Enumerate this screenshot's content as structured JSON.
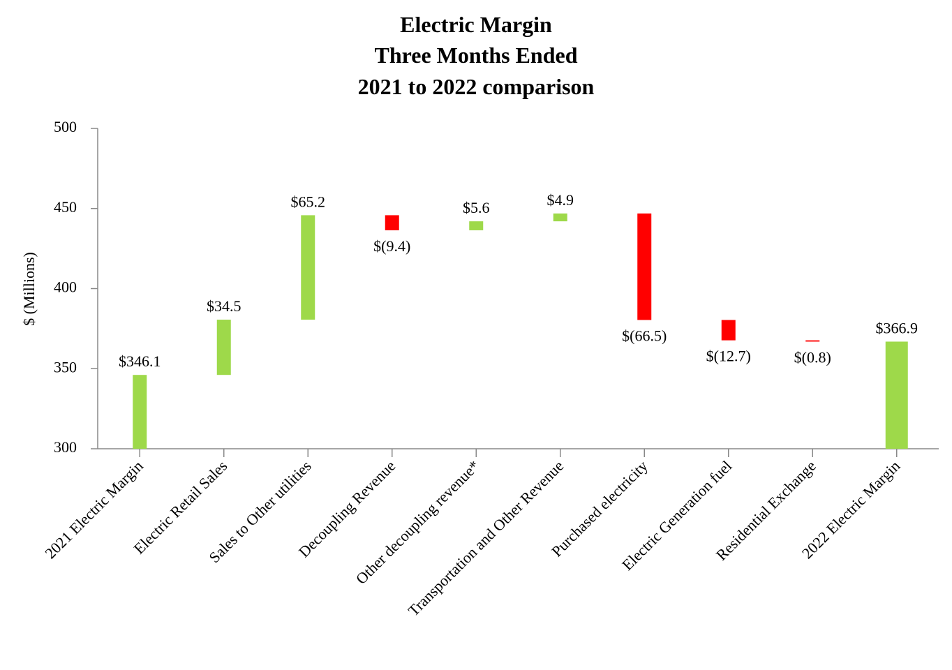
{
  "chart_data": {
    "type": "waterfall",
    "title": [
      "Electric Margin",
      "Three Months Ended",
      "2021 to 2022 comparison"
    ],
    "y_label": "$ (Millions)",
    "categories": [
      "2021 Electric Margin",
      "Electric Retail Sales",
      "Sales to Other utilities",
      "Decoupling Revenue",
      "Other decoupling revenue*",
      "Transportation and Other Revenue",
      "Purchased electricity",
      "Electric Generation fuel",
      "Residential Exchange",
      "2022 Electric Margin"
    ],
    "values": [
      346.1,
      34.5,
      65.2,
      -9.4,
      5.6,
      4.9,
      -66.5,
      -12.7,
      -0.8,
      366.9
    ],
    "value_labels": [
      "$346.1",
      "$34.5",
      "$65.2",
      "$(9.4)",
      "$5.6",
      "$4.9",
      "$(66.5)",
      "$(12.7)",
      "$(0.8)",
      "$366.9"
    ],
    "measures": [
      "absolute",
      "relative",
      "relative",
      "relative",
      "relative",
      "relative",
      "relative",
      "relative",
      "relative",
      "total"
    ],
    "colors": {
      "increase": "#9ed94a",
      "decrease": "#ff0000",
      "total": "#9ed94a"
    },
    "ylim": [
      300,
      500
    ],
    "yticks": [
      300,
      350,
      400,
      450,
      500
    ],
    "grid": false
  }
}
